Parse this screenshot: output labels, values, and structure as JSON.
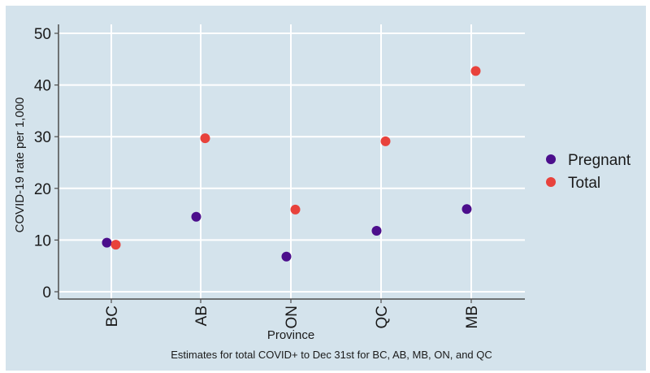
{
  "chart_data": {
    "type": "scatter",
    "title": "",
    "xlabel": "Province",
    "ylabel": "COVID-19 rate per 1,000",
    "caption": "Estimates for total COVID+ to Dec 31st for BC, AB, MB, ON, and QC",
    "categories": [
      "BC",
      "AB",
      "ON",
      "QC",
      "MB"
    ],
    "ylim": [
      0,
      50
    ],
    "yticks": [
      0,
      10,
      20,
      30,
      40,
      50
    ],
    "grid": true,
    "legend_position": "right",
    "series": [
      {
        "name": "Pregnant",
        "color": "#4b0e8c",
        "values": [
          9.5,
          14.5,
          6.8,
          11.8,
          16.0
        ]
      },
      {
        "name": "Total",
        "color": "#e8423c",
        "values": [
          9.1,
          29.7,
          15.9,
          29.1,
          42.7
        ]
      }
    ]
  },
  "colors": {
    "background": "#d4e3ec",
    "grid": "#ffffff",
    "axis": "#4d4d4d"
  }
}
